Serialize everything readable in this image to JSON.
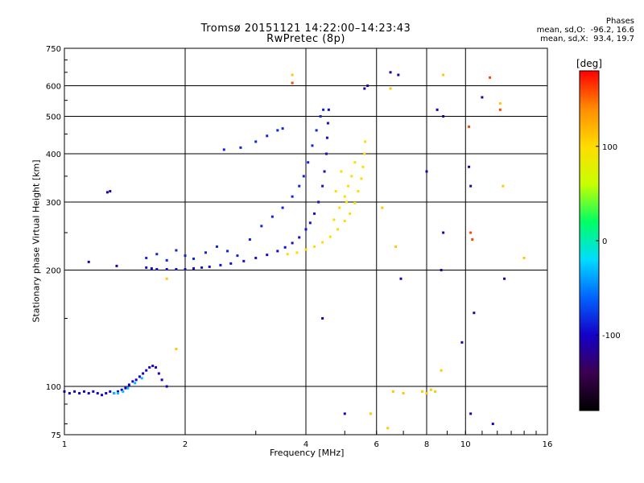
{
  "chart_data": {
    "type": "scatter",
    "title_line1": "Tromsø 20151121 14:22:00–14:23:43",
    "title_line2": "RwPretec (8p)",
    "xlabel": "Frequency [MHz]",
    "ylabel": "Stationary phase Virtual Height [km]",
    "x_scale": "log",
    "y_scale": "log",
    "xlim": [
      1,
      16
    ],
    "ylim": [
      75,
      750
    ],
    "x_ticks": [
      1,
      2,
      4,
      6,
      8,
      10,
      16
    ],
    "x_tick_labels": [
      "1",
      "2",
      "4",
      "6",
      "8",
      "10",
      "16"
    ],
    "y_ticks": [
      75,
      100,
      200,
      300,
      400,
      500,
      600,
      750
    ],
    "y_tick_labels": [
      "75",
      "100",
      "200",
      "300",
      "400",
      "500",
      "600",
      "750"
    ],
    "grid": true,
    "colorbar": {
      "label": "[deg]",
      "range": [
        -180,
        180
      ],
      "ticks": [
        100,
        0,
        -100
      ],
      "tick_labels": [
        "100",
        "0",
        "-100"
      ],
      "colors": [
        "#000000",
        "#3c0050",
        "#1400c8",
        "#0064ff",
        "#00dcff",
        "#00ff64",
        "#c8ff00",
        "#ffdc00",
        "#ff8c00",
        "#ff0000"
      ]
    },
    "stats": {
      "heading": "Phases",
      "line_o": "mean, sd,O:  -96.2, 16.6",
      "line_x": "mean, sd,X:  93.4, 19.7"
    },
    "series": [
      {
        "trace": "E-layer O-mode",
        "phase_mean": -100,
        "points": [
          [
            1.0,
            97
          ],
          [
            1.03,
            96
          ],
          [
            1.06,
            97
          ],
          [
            1.09,
            96
          ],
          [
            1.12,
            97
          ],
          [
            1.15,
            96
          ],
          [
            1.18,
            97
          ],
          [
            1.21,
            96
          ],
          [
            1.24,
            95
          ],
          [
            1.27,
            96
          ],
          [
            1.3,
            97
          ],
          [
            1.33,
            96
          ],
          [
            1.36,
            97
          ],
          [
            1.39,
            98
          ],
          [
            1.42,
            99
          ],
          [
            1.45,
            101
          ],
          [
            1.48,
            103
          ],
          [
            1.51,
            104
          ],
          [
            1.54,
            106
          ],
          [
            1.57,
            108
          ],
          [
            1.6,
            110
          ],
          [
            1.63,
            112
          ],
          [
            1.66,
            113
          ],
          [
            1.69,
            112
          ],
          [
            1.72,
            108
          ],
          [
            1.75,
            104
          ],
          [
            1.8,
            100
          ]
        ]
      },
      {
        "trace": "E-layer O-mode (cyan segment)",
        "phase_mean": -30,
        "points": [
          [
            1.33,
            96
          ],
          [
            1.36,
            96
          ],
          [
            1.4,
            97
          ],
          [
            1.44,
            99
          ],
          [
            1.5,
            102
          ],
          [
            1.56,
            105
          ]
        ]
      },
      {
        "trace": "F-layer O-mode",
        "phase_mean": -95,
        "points": [
          [
            1.6,
            203
          ],
          [
            1.65,
            202
          ],
          [
            1.7,
            201
          ],
          [
            1.8,
            201
          ],
          [
            1.9,
            201
          ],
          [
            2.0,
            201
          ],
          [
            2.1,
            202
          ],
          [
            2.2,
            203
          ],
          [
            2.3,
            204
          ],
          [
            2.45,
            206
          ],
          [
            2.6,
            208
          ],
          [
            2.8,
            211
          ],
          [
            3.0,
            215
          ],
          [
            3.2,
            219
          ],
          [
            3.4,
            224
          ],
          [
            3.55,
            229
          ],
          [
            3.7,
            235
          ],
          [
            3.85,
            243
          ],
          [
            4.0,
            255
          ],
          [
            4.1,
            265
          ],
          [
            4.2,
            280
          ],
          [
            4.3,
            300
          ],
          [
            4.4,
            330
          ],
          [
            4.45,
            360
          ],
          [
            4.5,
            400
          ],
          [
            4.52,
            440
          ],
          [
            4.54,
            480
          ],
          [
            4.56,
            520
          ]
        ]
      },
      {
        "trace": "F-layer O-mode spread",
        "phase_mean": -85,
        "points": [
          [
            1.6,
            215
          ],
          [
            1.7,
            220
          ],
          [
            1.8,
            212
          ],
          [
            1.9,
            225
          ],
          [
            2.0,
            218
          ],
          [
            2.1,
            214
          ],
          [
            2.25,
            222
          ],
          [
            2.4,
            230
          ],
          [
            2.55,
            224
          ],
          [
            2.7,
            218
          ],
          [
            2.9,
            240
          ],
          [
            3.1,
            260
          ],
          [
            3.3,
            275
          ],
          [
            3.5,
            290
          ],
          [
            3.7,
            310
          ],
          [
            3.85,
            330
          ],
          [
            3.95,
            350
          ],
          [
            4.05,
            380
          ],
          [
            4.15,
            420
          ],
          [
            4.25,
            460
          ],
          [
            4.35,
            500
          ],
          [
            4.42,
            520
          ],
          [
            2.5,
            410
          ],
          [
            2.75,
            415
          ],
          [
            3.0,
            430
          ],
          [
            3.2,
            445
          ],
          [
            3.4,
            460
          ],
          [
            3.5,
            465
          ]
        ]
      },
      {
        "trace": "F-layer X-mode",
        "phase_mean": 100,
        "points": [
          [
            3.6,
            220
          ],
          [
            3.8,
            222
          ],
          [
            4.0,
            226
          ],
          [
            4.2,
            230
          ],
          [
            4.4,
            236
          ],
          [
            4.6,
            244
          ],
          [
            4.8,
            255
          ],
          [
            5.0,
            268
          ],
          [
            5.15,
            280
          ],
          [
            5.3,
            298
          ],
          [
            5.4,
            320
          ],
          [
            5.5,
            345
          ],
          [
            5.55,
            370
          ],
          [
            5.6,
            400
          ],
          [
            5.62,
            430
          ],
          [
            4.7,
            270
          ],
          [
            4.85,
            290
          ],
          [
            5.0,
            310
          ],
          [
            5.1,
            330
          ],
          [
            5.2,
            350
          ],
          [
            5.3,
            380
          ],
          [
            4.75,
            320
          ],
          [
            4.9,
            360
          ],
          [
            5.05,
            300
          ]
        ]
      },
      {
        "trace": "scattered",
        "phase_mean": -110,
        "points": [
          [
            1.3,
            320
          ],
          [
            1.28,
            318
          ],
          [
            1.15,
            210
          ],
          [
            1.35,
            205
          ],
          [
            5.6,
            590
          ],
          [
            5.7,
            600
          ],
          [
            6.5,
            650
          ],
          [
            6.8,
            640
          ],
          [
            8.0,
            360
          ],
          [
            8.5,
            520
          ],
          [
            8.8,
            500
          ],
          [
            10.2,
            370
          ],
          [
            10.3,
            330
          ],
          [
            11.0,
            560
          ],
          [
            12.5,
            190
          ],
          [
            10.5,
            155
          ],
          [
            10.3,
            85
          ],
          [
            11.7,
            80
          ],
          [
            9.8,
            130
          ],
          [
            8.8,
            250
          ],
          [
            8.7,
            200
          ],
          [
            4.4,
            150
          ],
          [
            5.0,
            85
          ],
          [
            6.9,
            190
          ]
        ]
      },
      {
        "trace": "scattered X",
        "phase_mean": 110,
        "points": [
          [
            3.7,
            640
          ],
          [
            6.5,
            590
          ],
          [
            7.8,
            97
          ],
          [
            8.0,
            96
          ],
          [
            8.2,
            98
          ],
          [
            8.4,
            97
          ],
          [
            6.6,
            97
          ],
          [
            7.0,
            96
          ],
          [
            6.2,
            290
          ],
          [
            6.7,
            230
          ],
          [
            8.8,
            640
          ],
          [
            12.2,
            540
          ],
          [
            12.4,
            330
          ],
          [
            14.0,
            215
          ],
          [
            5.8,
            85
          ],
          [
            6.4,
            78
          ],
          [
            8.7,
            110
          ],
          [
            1.9,
            125
          ],
          [
            1.8,
            190
          ]
        ]
      },
      {
        "trace": "scattered red",
        "phase_mean": 160,
        "points": [
          [
            10.2,
            470
          ],
          [
            10.3,
            250
          ],
          [
            10.4,
            240
          ],
          [
            12.2,
            520
          ],
          [
            11.5,
            630
          ],
          [
            3.7,
            610
          ]
        ]
      }
    ]
  }
}
